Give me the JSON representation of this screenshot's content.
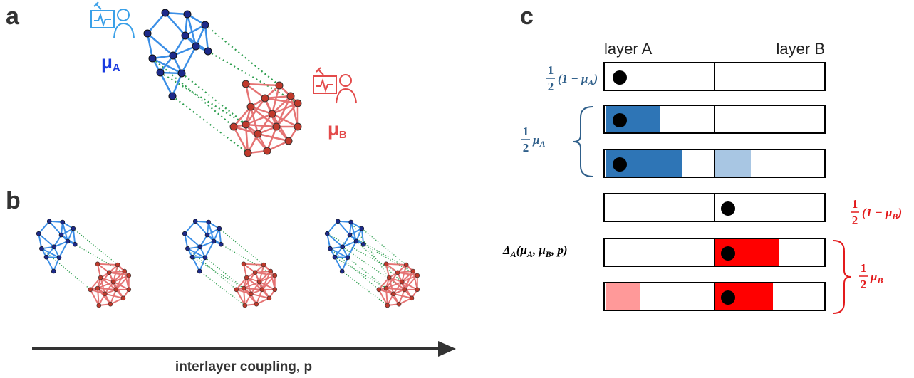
{
  "panel_labels": [
    "a",
    "b",
    "c"
  ],
  "panel_a": {
    "mu_a": {
      "symbol": "μ",
      "sub": "A"
    },
    "mu_b": {
      "symbol": "μ",
      "sub": "B"
    }
  },
  "panel_b": {
    "axis_label": "interlayer coupling, p"
  },
  "panel_c": {
    "column_headers": [
      "layer A",
      "layer B"
    ],
    "annotations": [
      {
        "num": "1",
        "den": "2",
        "parts": [
          {
            "t": "(1 − μ"
          },
          {
            "s": "A"
          },
          {
            "t": ")"
          }
        ]
      },
      {
        "num": "1",
        "den": "2",
        "parts": [
          {
            "t": "μ"
          },
          {
            "s": "A"
          }
        ]
      },
      {
        "num": "1",
        "den": "2",
        "parts": [
          {
            "t": "(1 − μ"
          },
          {
            "s": "B"
          },
          {
            "t": ")"
          }
        ]
      },
      {
        "parts": [
          {
            "t": "Δ"
          },
          {
            "s": "A"
          },
          {
            "t": "(μ"
          },
          {
            "s": "A"
          },
          {
            "t": ", μ"
          },
          {
            "s": "B"
          },
          {
            "t": ", p)"
          }
        ]
      },
      {
        "num": "1",
        "den": "2",
        "parts": [
          {
            "t": "μ"
          },
          {
            "s": "B"
          }
        ]
      }
    ]
  }
}
